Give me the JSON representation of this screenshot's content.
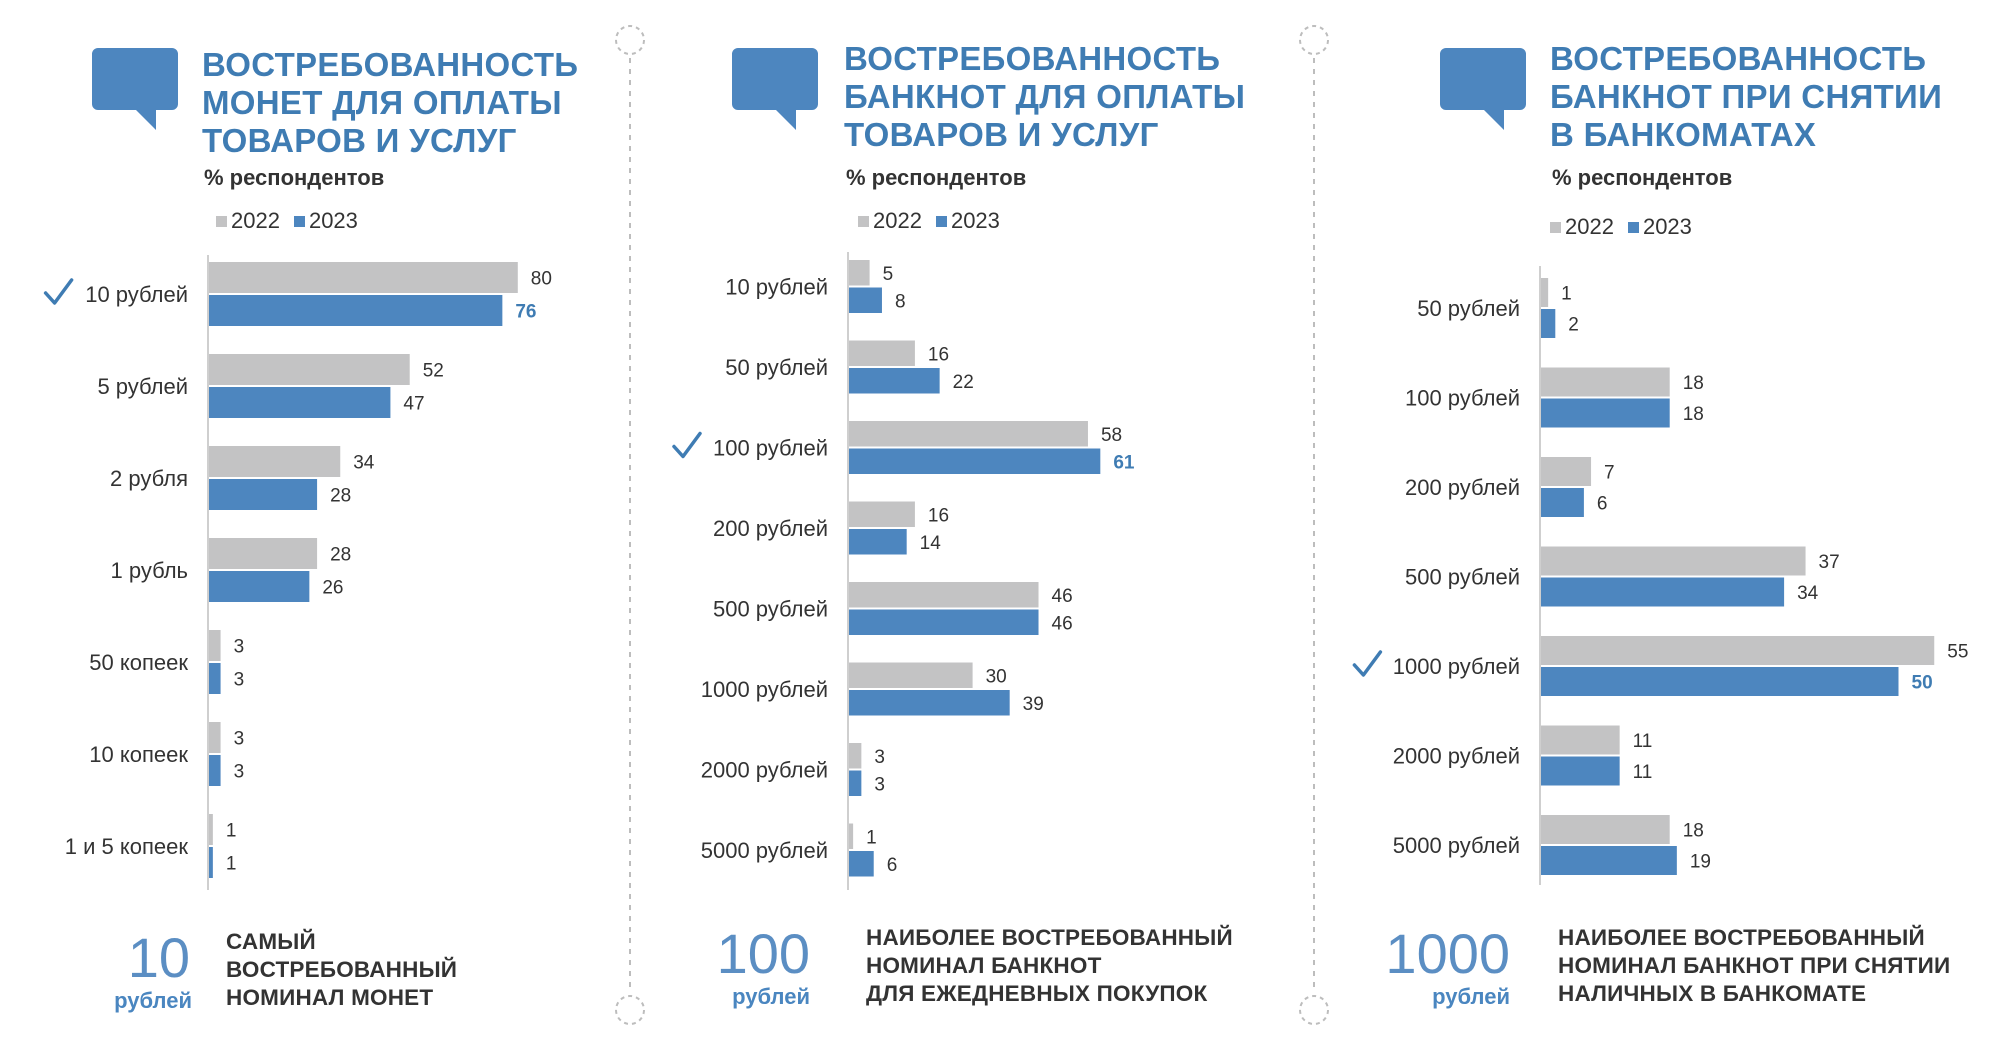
{
  "colors": {
    "y2022": "#c3c3c4",
    "y2023": "#4d86bf",
    "title": "#3f7cb3",
    "text": "#333333",
    "highlight": "#3f7cb3"
  },
  "legend": [
    "2022",
    "2023"
  ],
  "panels": [
    {
      "title": [
        "ВОСТРЕБОВАННОСТЬ",
        "МОНЕТ ДЛЯ ОПЛАТЫ",
        "ТОВАРОВ И УСЛУГ"
      ],
      "subtitle": "% респондентов",
      "highlight_value": "10",
      "highlight_unit": "рублей",
      "note": [
        "САМЫЙ",
        "ВОСТРЕБОВАННЫЙ",
        "НОМИНАЛ МОНЕТ"
      ]
    },
    {
      "title": [
        "ВОСТРЕБОВАННОСТЬ",
        "БАНКНОТ ДЛЯ ОПЛАТЫ",
        "ТОВАРОВ И УСЛУГ"
      ],
      "subtitle": "% респондентов",
      "highlight_value": "100",
      "highlight_unit": "рублей",
      "note": [
        "НАИБОЛЕЕ ВОСТРЕБОВАННЫЙ",
        "НОМИНАЛ БАНКНОТ",
        "ДЛЯ ЕЖЕДНЕВНЫХ ПОКУПОК"
      ]
    },
    {
      "title": [
        "ВОСТРЕБОВАННОСТЬ",
        "БАНКНОТ ПРИ СНЯТИИ",
        "В БАНКОМАТАХ"
      ],
      "subtitle": "% респондентов",
      "highlight_value": "1000",
      "highlight_unit": "рублей",
      "note": [
        "НАИБОЛЕЕ ВОСТРЕБОВАННЫЙ",
        "НОМИНАЛ БАНКНОТ ПРИ СНЯТИИ",
        "НАЛИЧНЫХ В БАНКОМАТЕ"
      ]
    }
  ],
  "chart_data": [
    {
      "type": "bar",
      "orientation": "horizontal",
      "title": "ВОСТРЕБОВАННОСТЬ МОНЕТ ДЛЯ ОПЛАТЫ ТОВАРОВ И УСЛУГ",
      "unit": "% респондентов",
      "categories": [
        "10 рублей",
        "5 рублей",
        "2 рубля",
        "1 рубль",
        "50 копеек",
        "10 копеек",
        "1 и 5 копеек"
      ],
      "series": [
        {
          "name": "2022",
          "values": [
            80,
            52,
            34,
            28,
            3,
            3,
            1
          ]
        },
        {
          "name": "2023",
          "values": [
            76,
            47,
            28,
            26,
            3,
            3,
            1
          ]
        }
      ],
      "checked_category": "10 рублей",
      "xlim": [
        0,
        100
      ],
      "legend_position": "top-left",
      "grid": false
    },
    {
      "type": "bar",
      "orientation": "horizontal",
      "title": "ВОСТРЕБОВАННОСТЬ БАНКНОТ ДЛЯ ОПЛАТЫ ТОВАРОВ И УСЛУГ",
      "unit": "% респондентов",
      "categories": [
        "10 рублей",
        "50 рублей",
        "100 рублей",
        "200 рублей",
        "500 рублей",
        "1000 рублей",
        "2000 рублей",
        "5000 рублей"
      ],
      "series": [
        {
          "name": "2022",
          "values": [
            5,
            16,
            58,
            16,
            46,
            30,
            3,
            1
          ]
        },
        {
          "name": "2023",
          "values": [
            8,
            22,
            61,
            14,
            46,
            39,
            3,
            6
          ]
        }
      ],
      "checked_category": "100 рублей",
      "xlim": [
        0,
        100
      ],
      "legend_position": "top-left",
      "grid": false
    },
    {
      "type": "bar",
      "orientation": "horizontal",
      "title": "ВОСТРЕБОВАННОСТЬ БАНКНОТ ПРИ СНЯТИИ В БАНКОМАТАХ",
      "unit": "% респондентов",
      "categories": [
        "50 рублей",
        "100 рублей",
        "200 рублей",
        "500 рублей",
        "1000 рублей",
        "2000 рублей",
        "5000 рублей"
      ],
      "series": [
        {
          "name": "2022",
          "values": [
            1,
            18,
            7,
            37,
            55,
            11,
            18
          ]
        },
        {
          "name": "2023",
          "values": [
            2,
            18,
            6,
            34,
            50,
            11,
            19
          ]
        }
      ],
      "checked_category": "1000 рублей",
      "xlim": [
        0,
        100
      ],
      "legend_position": "top-left",
      "grid": false
    }
  ]
}
